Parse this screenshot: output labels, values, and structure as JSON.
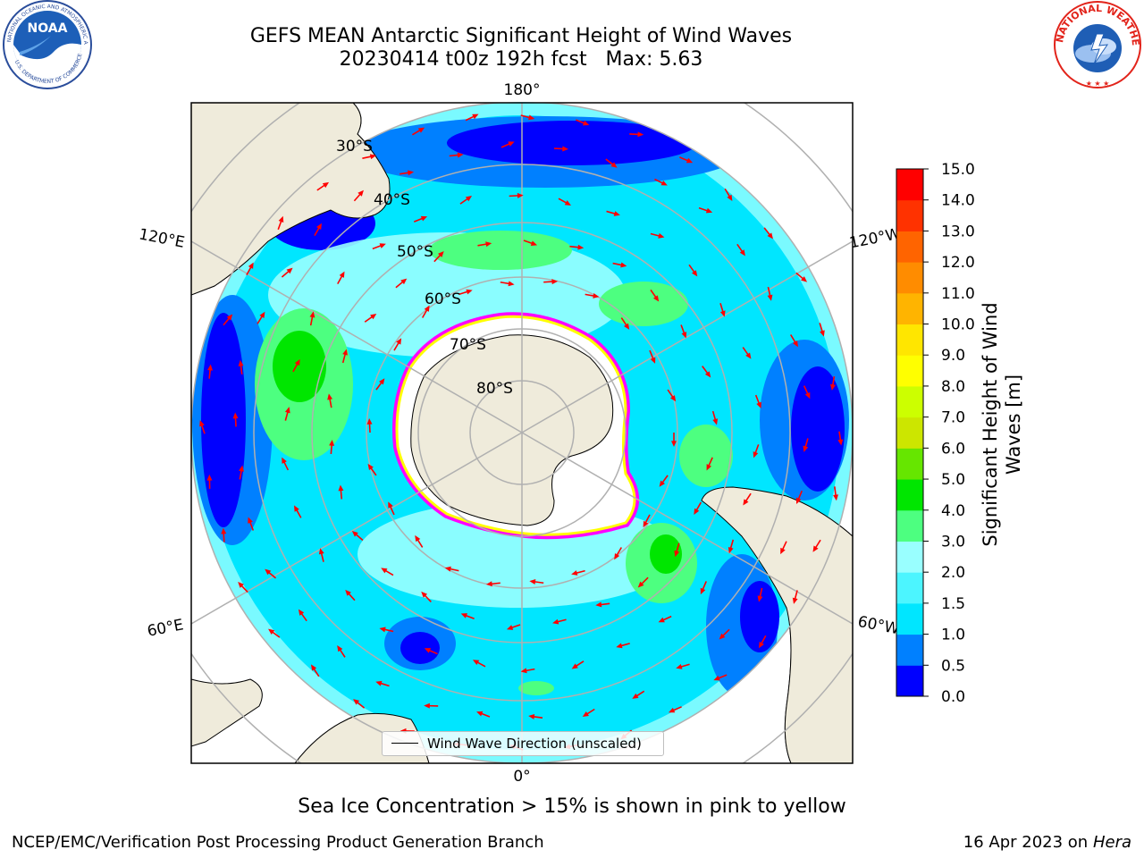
{
  "title": {
    "line1": "GEFS MEAN Antarctic Significant Height of Wind Waves",
    "line2": "20230414 t00z 192h fcst   Max: 5.63"
  },
  "logos": {
    "left": {
      "name": "NOAA",
      "ring_text": "NATIONAL OCEANIC AND ATMOSPHERIC ADMINISTRATION · U.S. DEPARTMENT OF COMMERCE",
      "colors": {
        "outer": "#ffffff",
        "inner": "#1d5fb8",
        "bird": "#ffffff",
        "ring": "#2a4d9b"
      }
    },
    "right": {
      "name": "National Weather Service",
      "ring_text": "NATIONAL WEATHER SERVICE",
      "colors": {
        "ring": "#e2231a",
        "inner": "#1f5eb5",
        "cloud": "#5b8fd6"
      }
    }
  },
  "map": {
    "projection": "south-polar stereographic",
    "longitude_labels": [
      "180°",
      "120°E",
      "120°W",
      "60°E",
      "60°W",
      "0°"
    ],
    "latitude_labels": [
      "30°S",
      "40°S",
      "50°S",
      "60°S",
      "70°S",
      "80°S"
    ],
    "legend_label": "Wind Wave Direction (unscaled)",
    "land_color": "#efebdb",
    "ice_edge_colors": [
      "#ff00ff",
      "#ff66cc",
      "#ffff00"
    ],
    "arrow_color": "#ff0000"
  },
  "colorbar": {
    "label": "Significant Height of Wind Waves [m]",
    "ticks": [
      "0.0",
      "0.5",
      "1.0",
      "1.5",
      "2.0",
      "3.0",
      "4.0",
      "5.0",
      "6.0",
      "7.0",
      "8.0",
      "9.0",
      "10.0",
      "11.0",
      "12.0",
      "13.0",
      "14.0",
      "15.0"
    ],
    "colors": [
      "#0000ff",
      "#0080ff",
      "#00e6ff",
      "#4cf5ff",
      "#99ffff",
      "#4dff80",
      "#00e600",
      "#66e600",
      "#cce600",
      "#ccff00",
      "#ffff00",
      "#ffe600",
      "#ffb400",
      "#ff8c00",
      "#ff6400",
      "#ff3200",
      "#ff0000"
    ]
  },
  "caption": "Sea Ice Concentration > 15% is shown in pink to yellow",
  "footer": {
    "left": "NCEP/EMC/Verification Post Processing Product Generation Branch",
    "right_prefix": "16 Apr 2023 on ",
    "right_italic": "Hera"
  }
}
